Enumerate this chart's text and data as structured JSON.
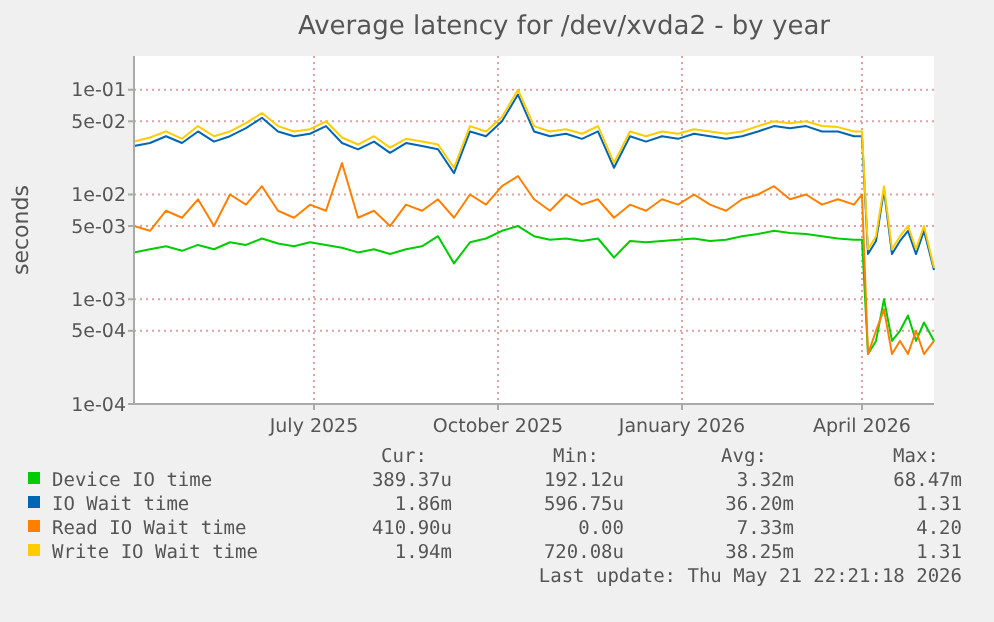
{
  "chart_data": {
    "type": "line",
    "title": "Average latency for /dev/xvda2 - by year",
    "ylabel": "seconds",
    "log": "y",
    "grid": true,
    "legend": "bottom",
    "line_style": "solid",
    "x": [
      "2025-04-16",
      "2025-04-24",
      "2025-05-02",
      "2025-05-10",
      "2025-05-18",
      "2025-05-26",
      "2025-06-03",
      "2025-06-11",
      "2025-06-19",
      "2025-06-27",
      "2025-07-05",
      "2025-07-13",
      "2025-07-21",
      "2025-07-29",
      "2025-08-06",
      "2025-08-14",
      "2025-08-22",
      "2025-08-30",
      "2025-09-07",
      "2025-09-15",
      "2025-09-23",
      "2025-10-01",
      "2025-10-09",
      "2025-10-17",
      "2025-10-25",
      "2025-11-02",
      "2025-11-10",
      "2025-11-18",
      "2025-11-26",
      "2025-12-04",
      "2025-12-12",
      "2025-12-20",
      "2025-12-28",
      "2026-01-05",
      "2026-01-13",
      "2026-01-21",
      "2026-01-29",
      "2026-02-06",
      "2026-02-14",
      "2026-02-22",
      "2026-03-02",
      "2026-03-10",
      "2026-03-18",
      "2026-03-26",
      "2026-04-03",
      "2026-04-11",
      "2026-04-15",
      "2026-04-18",
      "2026-04-22",
      "2026-04-26",
      "2026-04-30",
      "2026-05-04",
      "2026-05-08",
      "2026-05-12",
      "2026-05-16",
      "2026-05-21"
    ],
    "xlim": [
      "2025-04-16",
      "2026-05-21"
    ],
    "xticks": [
      {
        "value": "2025-07-15",
        "label": "July 2025"
      },
      {
        "value": "2025-10-15",
        "label": "October 2025"
      },
      {
        "value": "2026-01-15",
        "label": "January 2026"
      },
      {
        "value": "2026-04-15",
        "label": "April 2026"
      }
    ],
    "ylim": [
      0.0001,
      0.21
    ],
    "yticks": [
      {
        "value": 0.0001,
        "label": "1e-04"
      },
      {
        "value": 0.0005,
        "label": "5e-04"
      },
      {
        "value": 0.001,
        "label": "1e-03"
      },
      {
        "value": 0.005,
        "label": "5e-03"
      },
      {
        "value": 0.01,
        "label": "1e-02"
      },
      {
        "value": 0.05,
        "label": "5e-02"
      },
      {
        "value": 0.1,
        "label": "1e-01"
      }
    ],
    "series": [
      {
        "name": "Device IO time",
        "color": "#00cc00",
        "values": [
          0.0028,
          0.003,
          0.0032,
          0.0029,
          0.0033,
          0.003,
          0.0035,
          0.0033,
          0.0038,
          0.0034,
          0.0032,
          0.0035,
          0.0033,
          0.0031,
          0.0028,
          0.003,
          0.0027,
          0.003,
          0.0032,
          0.004,
          0.0022,
          0.0035,
          0.0038,
          0.0045,
          0.005,
          0.004,
          0.0037,
          0.0038,
          0.0036,
          0.0038,
          0.0025,
          0.0036,
          0.0035,
          0.0036,
          0.0037,
          0.0038,
          0.0036,
          0.0037,
          0.004,
          0.0042,
          0.0045,
          0.0043,
          0.0042,
          0.004,
          0.0038,
          0.0037,
          0.0037,
          0.0003,
          0.0004,
          0.001,
          0.0004,
          0.0005,
          0.0007,
          0.0004,
          0.0006,
          0.0004
        ]
      },
      {
        "name": "IO Wait time",
        "color": "#0066b3",
        "values": [
          0.029,
          0.031,
          0.036,
          0.031,
          0.04,
          0.032,
          0.036,
          0.043,
          0.054,
          0.04,
          0.036,
          0.038,
          0.045,
          0.031,
          0.027,
          0.032,
          0.025,
          0.031,
          0.029,
          0.027,
          0.016,
          0.04,
          0.036,
          0.05,
          0.09,
          0.04,
          0.036,
          0.038,
          0.034,
          0.04,
          0.018,
          0.036,
          0.032,
          0.036,
          0.034,
          0.038,
          0.036,
          0.034,
          0.036,
          0.04,
          0.045,
          0.043,
          0.045,
          0.04,
          0.04,
          0.036,
          0.036,
          0.0027,
          0.0036,
          0.011,
          0.0027,
          0.0036,
          0.0045,
          0.0027,
          0.0045,
          0.0019
        ]
      },
      {
        "name": "Read IO Wait time",
        "color": "#ff8000",
        "values": [
          0.005,
          0.0045,
          0.007,
          0.006,
          0.009,
          0.005,
          0.01,
          0.008,
          0.012,
          0.007,
          0.006,
          0.008,
          0.007,
          0.02,
          0.006,
          0.007,
          0.005,
          0.008,
          0.007,
          0.009,
          0.006,
          0.01,
          0.008,
          0.012,
          0.015,
          0.009,
          0.007,
          0.01,
          0.008,
          0.009,
          0.006,
          0.008,
          0.007,
          0.009,
          0.008,
          0.01,
          0.008,
          0.007,
          0.009,
          0.01,
          0.012,
          0.009,
          0.01,
          0.008,
          0.009,
          0.008,
          0.01,
          0.0003,
          0.0005,
          0.0008,
          0.0003,
          0.0004,
          0.0003,
          0.0005,
          0.0003,
          0.0004
        ]
      },
      {
        "name": "Write IO Wait time",
        "color": "#ffcc00",
        "values": [
          0.032,
          0.035,
          0.04,
          0.034,
          0.045,
          0.036,
          0.04,
          0.048,
          0.06,
          0.045,
          0.04,
          0.042,
          0.05,
          0.035,
          0.03,
          0.036,
          0.028,
          0.034,
          0.032,
          0.03,
          0.018,
          0.045,
          0.04,
          0.055,
          0.1,
          0.045,
          0.04,
          0.042,
          0.038,
          0.045,
          0.02,
          0.04,
          0.036,
          0.04,
          0.038,
          0.042,
          0.04,
          0.038,
          0.04,
          0.045,
          0.05,
          0.048,
          0.05,
          0.045,
          0.044,
          0.04,
          0.04,
          0.003,
          0.004,
          0.012,
          0.003,
          0.004,
          0.005,
          0.003,
          0.005,
          0.002
        ]
      }
    ],
    "annotations": [
      "Cur:",
      "Min:",
      "Avg:",
      "Max:",
      "389.37u",
      "192.12u",
      "3.32m",
      "68.47m",
      "1.86m",
      "596.75u",
      "36.20m",
      "1.31",
      "410.90u",
      "0.00",
      "7.33m",
      "4.20",
      "1.94m",
      "720.08u",
      "38.25m",
      "1.31",
      "Last update: Thu May 21 22:21:18 2026"
    ]
  }
}
